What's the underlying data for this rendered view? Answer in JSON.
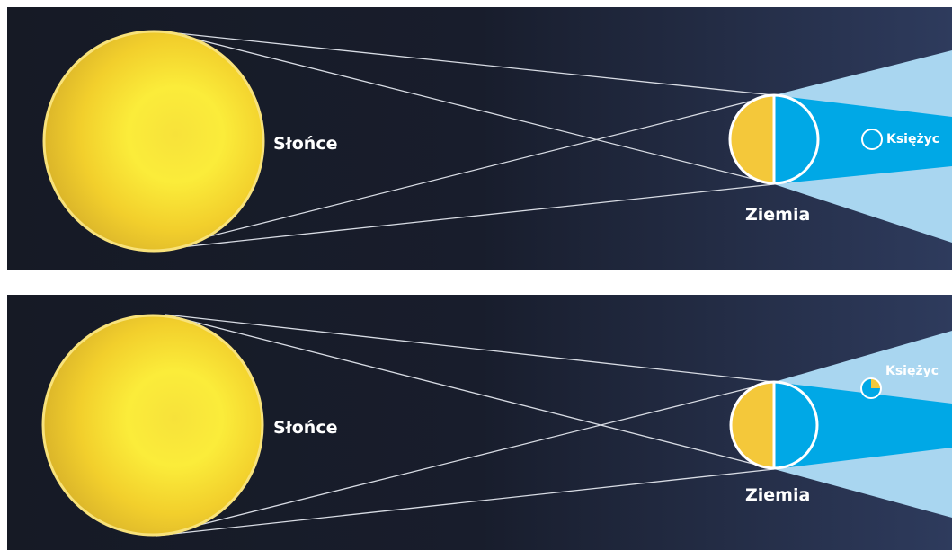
{
  "panels": [
    {
      "sun_label": "Słońce",
      "earth_label": "Ziemia",
      "moon_label": "Księżyc"
    },
    {
      "sun_label": "Słońce",
      "earth_label": "Ziemia",
      "moon_label": "Księżyc"
    }
  ],
  "colors": {
    "background_dark": "#151a27",
    "background_light": "#2d3a5c",
    "sun": "#f5d21a",
    "sun_core": "#fbe935",
    "sun_outline": "#f8e27a",
    "earth_day": "#f4c83a",
    "earth_night": "#00a8e6",
    "umbra": "#00a8e6",
    "penumbra": "#a9d6f0",
    "rays": "#d8dce4",
    "outline": "#ffffff"
  }
}
